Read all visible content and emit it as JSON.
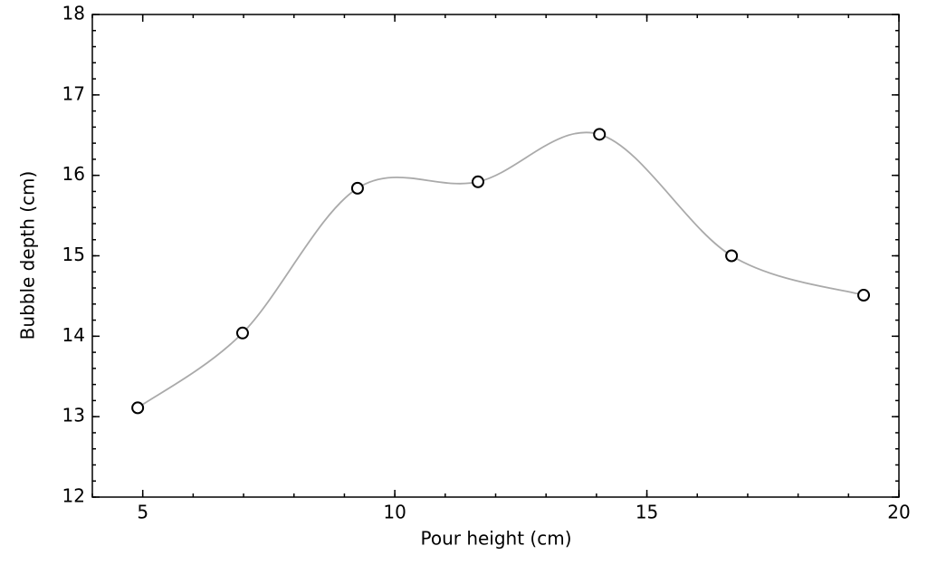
{
  "chart_data": {
    "type": "line",
    "xlabel": "Pour height (cm)",
    "ylabel": "Bubble depth (cm)",
    "x": [
      4.9,
      6.98,
      9.26,
      11.65,
      14.06,
      16.68,
      19.3
    ],
    "values": [
      13.11,
      14.04,
      15.84,
      15.92,
      16.51,
      15.0,
      14.51
    ],
    "line_color": "#aaaaaa",
    "marker_edge_color": "#000000",
    "marker_face_color": "#ffffff",
    "smooth": true,
    "xlim": [
      4,
      20
    ],
    "ylim": [
      12,
      18
    ],
    "xticks": [
      5,
      10,
      15,
      20
    ],
    "yticks": [
      12,
      13,
      14,
      15,
      16,
      17,
      18
    ],
    "xminorticks": [
      4,
      5,
      6,
      7,
      8,
      9,
      10,
      11,
      12,
      13,
      14,
      15,
      16,
      17,
      18,
      19,
      20
    ],
    "yminorticks": [
      12,
      12.2,
      12.4,
      12.6,
      12.8,
      13,
      13.2,
      13.4,
      13.6,
      13.8,
      14,
      14.2,
      14.4,
      14.6,
      14.8,
      15,
      15.2,
      15.4,
      15.6,
      15.8,
      16,
      16.2,
      16.4,
      16.6,
      16.8,
      17,
      17.2,
      17.4,
      17.6,
      17.8,
      18
    ]
  }
}
